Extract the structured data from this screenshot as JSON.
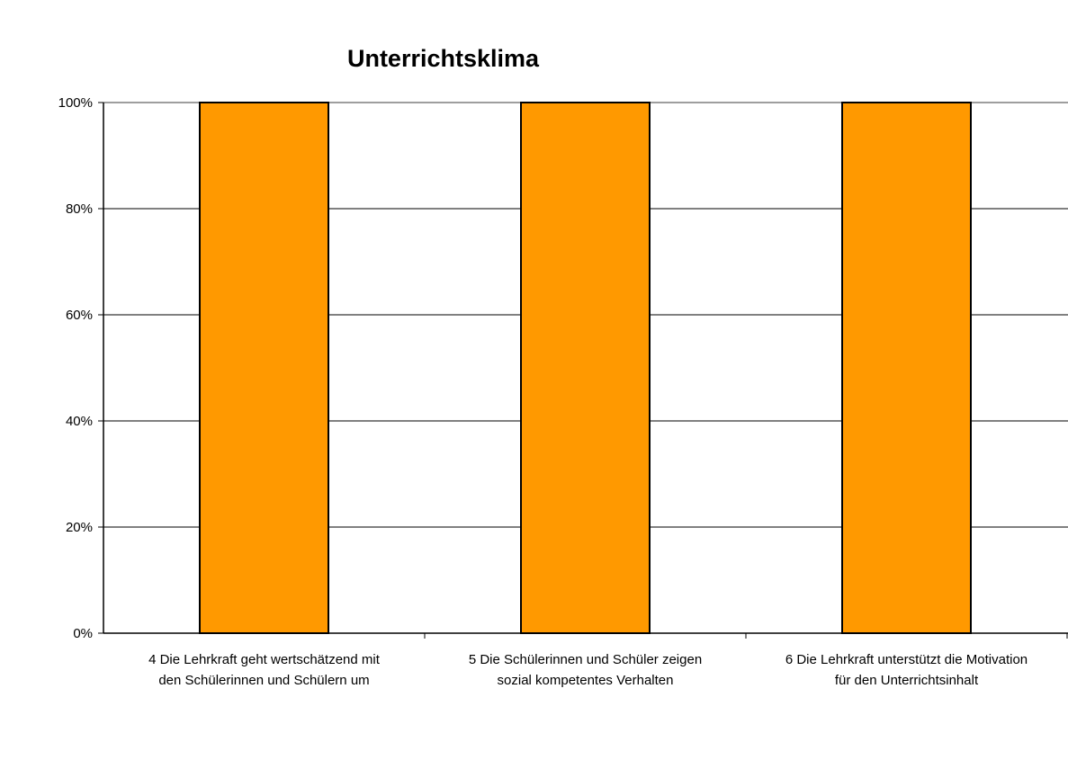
{
  "chart_data": {
    "type": "bar",
    "title": "Unterrichtsklima",
    "categories": [
      "4 Die Lehrkraft geht wertschätzend mit den Schülerinnen und Schülern um",
      "5 Die Schülerinnen und Schüler zeigen sozial kompetentes Verhalten",
      "6 Die Lehrkraft unterstützt die Motivation für den Unterrichtsinhalt"
    ],
    "category_lines": [
      [
        "4 Die Lehrkraft geht wertschätzend mit",
        "den Schülerinnen und Schülern um"
      ],
      [
        "5 Die Schülerinnen und Schüler zeigen",
        "sozial kompetentes Verhalten"
      ],
      [
        "6 Die Lehrkraft unterstützt die Motivation",
        "für den Unterrichtsinhalt"
      ]
    ],
    "values": [
      100,
      100,
      100
    ],
    "ylim": [
      0,
      100
    ],
    "yticks": [
      0,
      20,
      40,
      60,
      80,
      100
    ],
    "ytick_labels": [
      "0%",
      "20%",
      "40%",
      "60%",
      "80%",
      "100%"
    ],
    "grid": true,
    "legend": false,
    "bar_color": "#FF9900",
    "bar_edge_color": "#000000"
  }
}
